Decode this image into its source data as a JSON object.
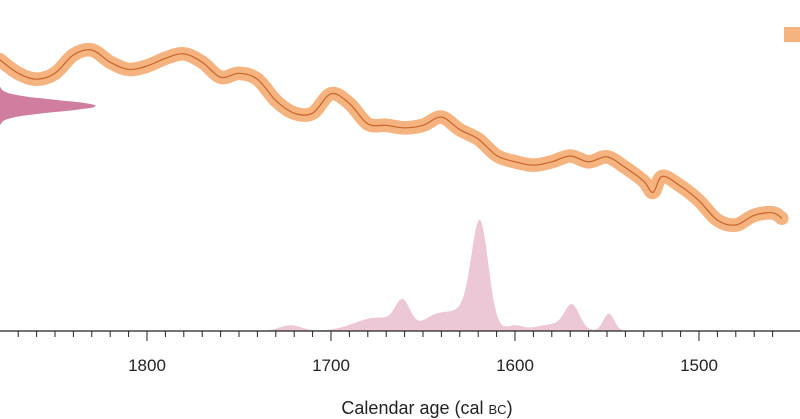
{
  "chart_data": {
    "type": "line",
    "title": "",
    "xlabel": "Calendar age (cal BC)",
    "xlabel_parts": {
      "main": "Calendar age (cal ",
      "era": "BC",
      "close": ")"
    },
    "x_reversed": true,
    "xlim": [
      1880,
      1455
    ],
    "x_ticks": [
      1800,
      1700,
      1600,
      1500
    ],
    "x_tick_labels": [
      "1800",
      "1700",
      "1600",
      "1500"
    ],
    "minor_tick_step": 10,
    "legend_marker": {
      "placement": "top-right",
      "label": "",
      "color": "#f5b37f"
    },
    "series": [
      {
        "kind": "calibration-curve",
        "color": "#c8642a",
        "band_color": "#f5b37f",
        "band_halfwidth": 14,
        "y_axis": "radiocarbon age (unlabeled, decreasing downward)",
        "points": [
          [
            1880,
            3540
          ],
          [
            1870,
            3568
          ],
          [
            1860,
            3580
          ],
          [
            1850,
            3568
          ],
          [
            1840,
            3530
          ],
          [
            1830,
            3520
          ],
          [
            1820,
            3545
          ],
          [
            1810,
            3560
          ],
          [
            1800,
            3553
          ],
          [
            1790,
            3537
          ],
          [
            1780,
            3528
          ],
          [
            1770,
            3545
          ],
          [
            1760,
            3576
          ],
          [
            1750,
            3568
          ],
          [
            1740,
            3580
          ],
          [
            1730,
            3624
          ],
          [
            1720,
            3650
          ],
          [
            1710,
            3650
          ],
          [
            1700,
            3610
          ],
          [
            1690,
            3630
          ],
          [
            1680,
            3672
          ],
          [
            1670,
            3675
          ],
          [
            1660,
            3680
          ],
          [
            1650,
            3675
          ],
          [
            1640,
            3658
          ],
          [
            1630,
            3684
          ],
          [
            1620,
            3703
          ],
          [
            1610,
            3737
          ],
          [
            1600,
            3750
          ],
          [
            1590,
            3757
          ],
          [
            1580,
            3750
          ],
          [
            1570,
            3738
          ],
          [
            1560,
            3750
          ],
          [
            1550,
            3740
          ],
          [
            1540,
            3762
          ],
          [
            1530,
            3790
          ],
          [
            1525,
            3813
          ],
          [
            1520,
            3780
          ],
          [
            1510,
            3800
          ],
          [
            1500,
            3830
          ],
          [
            1490,
            3870
          ],
          [
            1480,
            3880
          ],
          [
            1470,
            3860
          ],
          [
            1460,
            3855
          ],
          [
            1455,
            3866
          ]
        ]
      },
      {
        "kind": "measured-date",
        "color": "#cf7ea0",
        "center": 3635,
        "sigma": 12,
        "max_extent_years": 52
      },
      {
        "kind": "calibrated-probability",
        "color": "#ecc7d5",
        "components": [
          {
            "mean": 1722,
            "sd": 6,
            "weight": 0.06
          },
          {
            "mean": 1675,
            "sd": 12,
            "weight": 0.14
          },
          {
            "mean": 1661,
            "sd": 4,
            "weight": 0.26
          },
          {
            "mean": 1643,
            "sd": 7,
            "weight": 0.14
          },
          {
            "mean": 1619,
            "sd": 4.5,
            "weight": 1.0
          },
          {
            "mean": 1626,
            "sd": 9,
            "weight": 0.22
          },
          {
            "mean": 1600,
            "sd": 4,
            "weight": 0.05
          },
          {
            "mean": 1569,
            "sd": 4,
            "weight": 0.24
          },
          {
            "mean": 1579,
            "sd": 10,
            "weight": 0.07
          },
          {
            "mean": 1549,
            "sd": 3,
            "weight": 0.18
          }
        ]
      }
    ]
  }
}
